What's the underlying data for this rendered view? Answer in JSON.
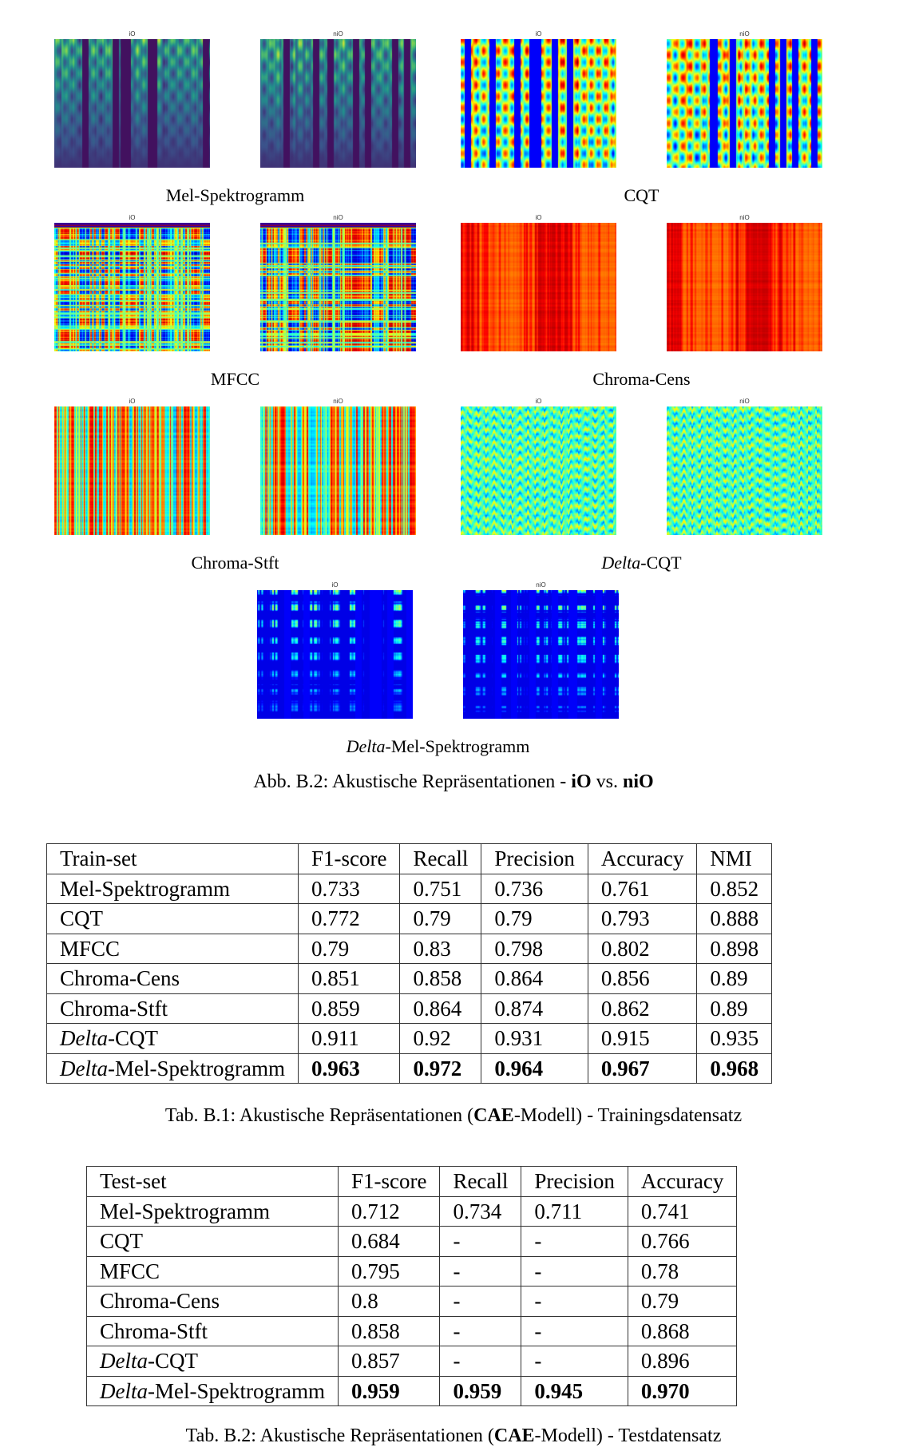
{
  "figure": {
    "panels": [
      {
        "caption": "Mel-Spektrogramm",
        "caption_prefix_italic": "",
        "colormap": "viridis",
        "titles": [
          "iO",
          "niO"
        ]
      },
      {
        "caption": "CQT",
        "caption_prefix_italic": "",
        "colormap": "jet",
        "titles": [
          "iO",
          "niO"
        ]
      },
      {
        "caption": "MFCC",
        "caption_prefix_italic": "",
        "colormap": "jet",
        "titles": [
          "iO",
          "niO"
        ]
      },
      {
        "caption": "Chroma-Cens",
        "caption_prefix_italic": "",
        "colormap": "jet",
        "titles": [
          "iO",
          "niO"
        ]
      },
      {
        "caption": "Chroma-Stft",
        "caption_prefix_italic": "",
        "colormap": "jet",
        "titles": [
          "iO",
          "niO"
        ]
      },
      {
        "caption": "-CQT",
        "caption_prefix_italic": "Delta",
        "colormap": "jet",
        "titles": [
          "iO",
          "niO"
        ]
      },
      {
        "caption": "-Mel-Spektrogramm",
        "caption_prefix_italic": "Delta",
        "colormap": "jet",
        "titles": [
          "iO",
          "niO"
        ]
      }
    ],
    "caption_prefix": "Abb. B.2: Akustische Repräsentationen - ",
    "caption_bold_1": "iO",
    "caption_mid": " vs. ",
    "caption_bold_2": "niO"
  },
  "train_table": {
    "headers": [
      "Train-set",
      "F1-score",
      "Recall",
      "Precision",
      "Accuracy",
      "NMI"
    ],
    "rows": [
      {
        "italic": "",
        "name": "Mel-Spektrogramm",
        "values": [
          "0.733",
          "0.751",
          "0.736",
          "0.761",
          "0.852"
        ]
      },
      {
        "italic": "",
        "name": "CQT",
        "values": [
          "0.772",
          "0.79",
          "0.79",
          "0.793",
          "0.888"
        ]
      },
      {
        "italic": "",
        "name": "MFCC",
        "values": [
          "0.79",
          "0.83",
          "0.798",
          "0.802",
          "0.898"
        ]
      },
      {
        "italic": "",
        "name": "Chroma-Cens",
        "values": [
          "0.851",
          "0.858",
          "0.864",
          "0.856",
          "0.89"
        ]
      },
      {
        "italic": "",
        "name": "Chroma-Stft",
        "values": [
          "0.859",
          "0.864",
          "0.874",
          "0.862",
          "0.89"
        ]
      },
      {
        "italic": "Delta",
        "name": "-CQT",
        "values": [
          "0.911",
          "0.92",
          "0.931",
          "0.915",
          "0.935"
        ]
      },
      {
        "italic": "Delta",
        "name": "-Mel-Spektrogramm",
        "values": [
          "0.963",
          "0.972",
          "0.964",
          "0.967",
          "0.968"
        ]
      }
    ],
    "caption_prefix": "Tab. B.1: Akustische Repräsentationen (",
    "caption_bold": "CAE",
    "caption_suffix": "-Modell) - Trainingsdatensatz"
  },
  "test_table": {
    "headers": [
      "Test-set",
      "F1-score",
      "Recall",
      "Precision",
      "Accuracy"
    ],
    "rows": [
      {
        "italic": "",
        "name": "Mel-Spektrogramm",
        "values": [
          "0.712",
          "0.734",
          "0.711",
          "0.741"
        ]
      },
      {
        "italic": "",
        "name": "CQT",
        "values": [
          "0.684",
          "-",
          "-",
          "0.766"
        ]
      },
      {
        "italic": "",
        "name": "MFCC",
        "values": [
          "0.795",
          "-",
          "-",
          "0.78"
        ]
      },
      {
        "italic": "",
        "name": "Chroma-Cens",
        "values": [
          "0.8",
          "-",
          "-",
          "0.79"
        ]
      },
      {
        "italic": "",
        "name": "Chroma-Stft",
        "values": [
          "0.858",
          "-",
          "-",
          "0.868"
        ]
      },
      {
        "italic": "Delta",
        "name": "-CQT",
        "values": [
          "0.857",
          "-",
          "-",
          "0.896"
        ]
      },
      {
        "italic": "Delta",
        "name": "-Mel-Spektrogramm",
        "values": [
          "0.959",
          "0.959",
          "0.945",
          "0.970"
        ]
      }
    ],
    "caption_prefix": "Tab. B.2: Akustische Repräsentationen (",
    "caption_bold": "CAE",
    "caption_suffix": "-Modell) - Testdatensatz"
  }
}
